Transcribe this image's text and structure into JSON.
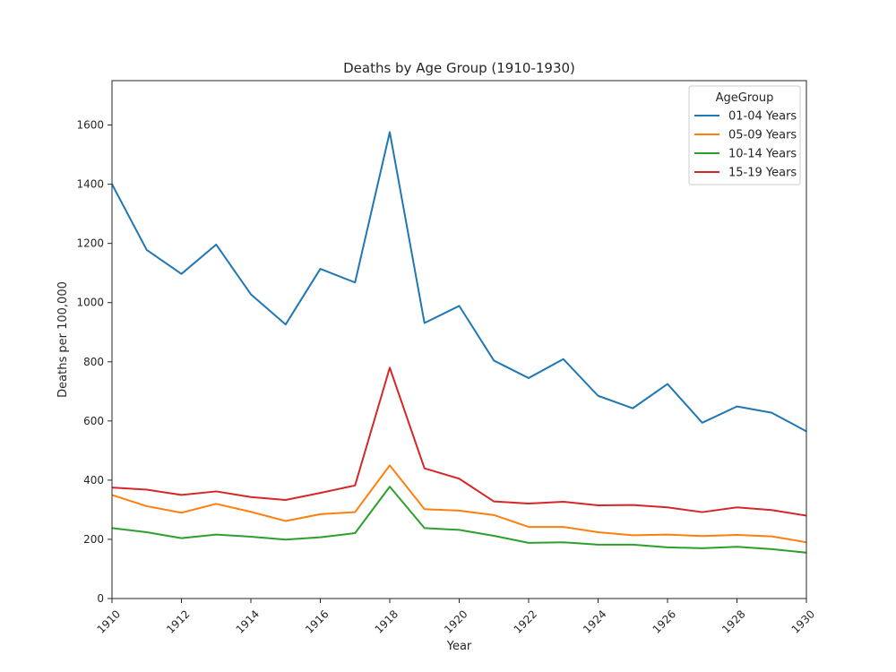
{
  "chart_data": {
    "type": "line",
    "title": "Deaths by Age Group (1910-1930)",
    "xlabel": "Year",
    "ylabel": "Deaths per 100,000",
    "xlim": [
      1910,
      1930
    ],
    "ylim": [
      0,
      1750
    ],
    "x_ticks": [
      1910,
      1912,
      1914,
      1916,
      1918,
      1920,
      1922,
      1924,
      1926,
      1928,
      1930
    ],
    "y_ticks": [
      0,
      200,
      400,
      600,
      800,
      1000,
      1200,
      1400,
      1600
    ],
    "grid": false,
    "legend": {
      "title": "AgeGroup",
      "placement": "top-right"
    },
    "x": [
      1910,
      1911,
      1912,
      1913,
      1914,
      1915,
      1916,
      1917,
      1918,
      1919,
      1920,
      1921,
      1922,
      1923,
      1924,
      1925,
      1926,
      1927,
      1928,
      1929,
      1930
    ],
    "series": [
      {
        "name": "01-04 Years",
        "color": "#1f77b4",
        "values": [
          1400,
          1178,
          1097,
          1196,
          1028,
          926,
          1114,
          1068,
          1576,
          931,
          989,
          804,
          745,
          809,
          685,
          643,
          725,
          594,
          649,
          628,
          565
        ]
      },
      {
        "name": "05-09 Years",
        "color": "#ff7f0e",
        "values": [
          350,
          312,
          290,
          320,
          293,
          262,
          285,
          292,
          450,
          302,
          297,
          282,
          242,
          242,
          224,
          214,
          216,
          211,
          215,
          210,
          190
        ]
      },
      {
        "name": "10-14 Years",
        "color": "#2ca02c",
        "values": [
          238,
          224,
          204,
          216,
          209,
          199,
          207,
          221,
          378,
          238,
          232,
          212,
          188,
          190,
          182,
          182,
          173,
          170,
          175,
          167,
          155
        ]
      },
      {
        "name": "15-19 Years",
        "color": "#d62728",
        "values": [
          375,
          368,
          350,
          362,
          343,
          333,
          357,
          382,
          780,
          440,
          405,
          328,
          321,
          327,
          315,
          316,
          308,
          292,
          308,
          299,
          280
        ]
      }
    ]
  }
}
